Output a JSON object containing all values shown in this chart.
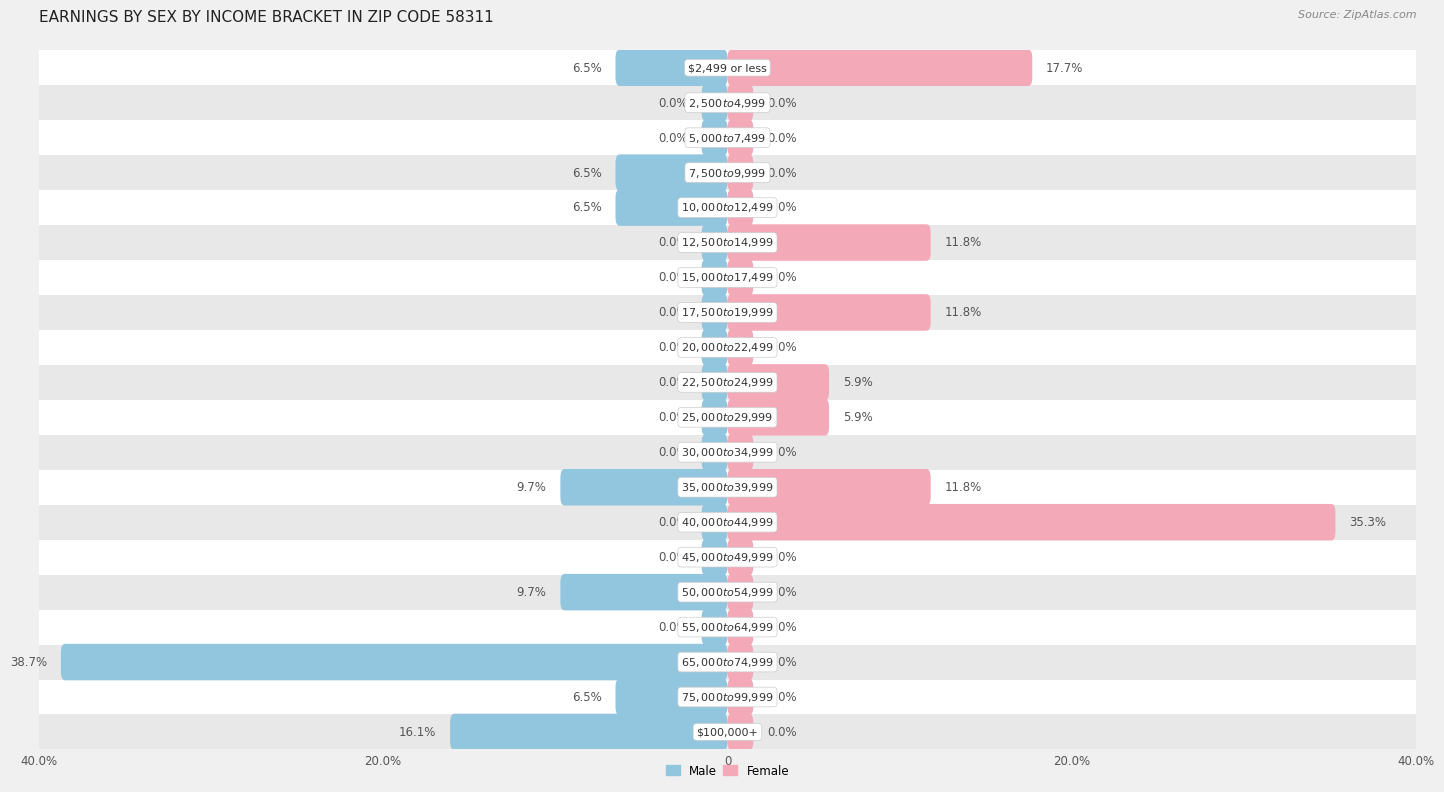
{
  "title": "EARNINGS BY SEX BY INCOME BRACKET IN ZIP CODE 58311",
  "source": "Source: ZipAtlas.com",
  "categories": [
    "$2,499 or less",
    "$2,500 to $4,999",
    "$5,000 to $7,499",
    "$7,500 to $9,999",
    "$10,000 to $12,499",
    "$12,500 to $14,999",
    "$15,000 to $17,499",
    "$17,500 to $19,999",
    "$20,000 to $22,499",
    "$22,500 to $24,999",
    "$25,000 to $29,999",
    "$30,000 to $34,999",
    "$35,000 to $39,999",
    "$40,000 to $44,999",
    "$45,000 to $49,999",
    "$50,000 to $54,999",
    "$55,000 to $64,999",
    "$65,000 to $74,999",
    "$75,000 to $99,999",
    "$100,000+"
  ],
  "male_values": [
    6.5,
    0.0,
    0.0,
    6.5,
    6.5,
    0.0,
    0.0,
    0.0,
    0.0,
    0.0,
    0.0,
    0.0,
    9.7,
    0.0,
    0.0,
    9.7,
    0.0,
    38.7,
    6.5,
    16.1
  ],
  "female_values": [
    17.7,
    0.0,
    0.0,
    0.0,
    0.0,
    11.8,
    0.0,
    11.8,
    0.0,
    5.9,
    5.9,
    0.0,
    11.8,
    35.3,
    0.0,
    0.0,
    0.0,
    0.0,
    0.0,
    0.0
  ],
  "male_color": "#92c5de",
  "female_color": "#f4a9b8",
  "axis_limit": 40.0,
  "background_color": "#f0f0f0",
  "row_bg_light": "#ffffff",
  "row_bg_dark": "#e8e8e8",
  "title_fontsize": 11,
  "label_fontsize": 8.5,
  "tick_fontsize": 8.5,
  "source_fontsize": 8,
  "bar_height": 0.55
}
